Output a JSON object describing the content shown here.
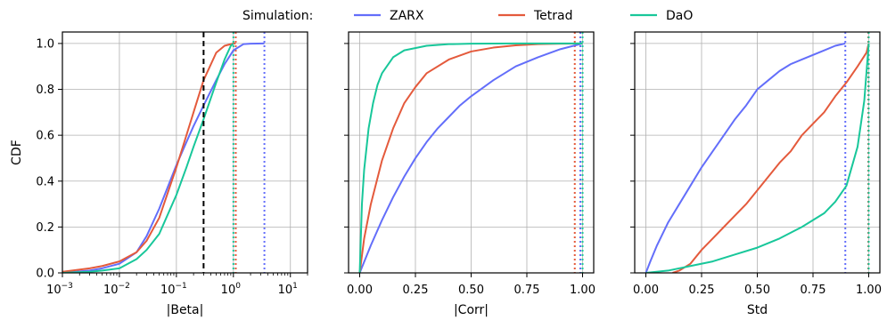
{
  "legend": {
    "title": "Simulation:",
    "placement": "top-center",
    "entries": [
      {
        "name": "ZARX",
        "color": "#636efa"
      },
      {
        "name": "Tetrad",
        "color": "#e45a3c"
      },
      {
        "name": "DaO",
        "color": "#18c79a"
      }
    ]
  },
  "colors": {
    "ZARX": "#636efa",
    "Tetrad": "#e45a3c",
    "DaO": "#18c79a",
    "threshold": "#000000",
    "grid": "#b0b0b0"
  },
  "chart_data": [
    {
      "type": "line",
      "panel": "beta",
      "xlabel": "|Beta|",
      "ylabel": "CDF",
      "xscale": "log",
      "xlim": [
        0.001,
        20
      ],
      "ylim": [
        0,
        1.05
      ],
      "grid": true,
      "xticks": [
        {
          "value": 0.001,
          "base": "10",
          "exp": "−3"
        },
        {
          "value": 0.01,
          "base": "10",
          "exp": "−2"
        },
        {
          "value": 0.1,
          "base": "10",
          "exp": "−1"
        },
        {
          "value": 1,
          "base": "10",
          "exp": "0"
        },
        {
          "value": 10,
          "base": "10",
          "exp": "1"
        }
      ],
      "yticks": [
        "0.0",
        "0.2",
        "0.4",
        "0.6",
        "0.8",
        "1.0"
      ],
      "threshold_line": 0.3,
      "vlines": [
        {
          "series": "Tetrad",
          "x": 1.1
        },
        {
          "series": "DaO",
          "x": 1.0
        },
        {
          "series": "ZARX",
          "x": 3.5
        }
      ],
      "series": [
        {
          "name": "ZARX",
          "x": [
            0.001,
            0.003,
            0.005,
            0.01,
            0.02,
            0.03,
            0.05,
            0.1,
            0.15,
            0.2,
            0.3,
            0.5,
            0.7,
            1.0,
            1.5,
            2.0,
            3.5
          ],
          "y": [
            0.0,
            0.01,
            0.02,
            0.04,
            0.09,
            0.16,
            0.28,
            0.47,
            0.57,
            0.64,
            0.73,
            0.84,
            0.91,
            0.97,
            0.997,
            0.999,
            1.0
          ]
        },
        {
          "name": "Tetrad",
          "x": [
            0.001,
            0.003,
            0.005,
            0.01,
            0.02,
            0.03,
            0.05,
            0.1,
            0.15,
            0.2,
            0.3,
            0.5,
            0.7,
            1.0,
            1.1
          ],
          "y": [
            0.005,
            0.02,
            0.03,
            0.05,
            0.09,
            0.14,
            0.24,
            0.46,
            0.6,
            0.7,
            0.84,
            0.96,
            0.99,
            1.0,
            1.0
          ]
        },
        {
          "name": "DaO",
          "x": [
            0.001,
            0.003,
            0.005,
            0.01,
            0.02,
            0.03,
            0.05,
            0.1,
            0.15,
            0.2,
            0.3,
            0.5,
            0.7,
            0.9,
            1.0
          ],
          "y": [
            0.0,
            0.005,
            0.01,
            0.02,
            0.06,
            0.1,
            0.17,
            0.34,
            0.46,
            0.55,
            0.67,
            0.83,
            0.93,
            0.99,
            1.0
          ]
        }
      ]
    },
    {
      "type": "line",
      "panel": "corr",
      "xlabel": "|Corr|",
      "ylabel": "",
      "xscale": "linear",
      "xlim": [
        -0.05,
        1.05
      ],
      "ylim": [
        0,
        1.05
      ],
      "grid": true,
      "xticks": [
        "0.00",
        "0.25",
        "0.50",
        "0.75",
        "1.00"
      ],
      "vlines": [
        {
          "series": "Tetrad",
          "x": 0.965
        },
        {
          "series": "ZARX",
          "x": 0.99
        },
        {
          "series": "DaO",
          "x": 1.0
        }
      ],
      "series": [
        {
          "name": "ZARX",
          "x": [
            0,
            0.05,
            0.1,
            0.15,
            0.2,
            0.25,
            0.3,
            0.35,
            0.4,
            0.45,
            0.5,
            0.6,
            0.7,
            0.8,
            0.9,
            1.0
          ],
          "y": [
            0.0,
            0.12,
            0.23,
            0.33,
            0.42,
            0.5,
            0.57,
            0.63,
            0.68,
            0.73,
            0.77,
            0.84,
            0.9,
            0.94,
            0.975,
            1.0
          ]
        },
        {
          "name": "Tetrad",
          "x": [
            0,
            0.02,
            0.05,
            0.1,
            0.15,
            0.2,
            0.25,
            0.3,
            0.4,
            0.5,
            0.6,
            0.7,
            0.8,
            0.9,
            1.0
          ],
          "y": [
            0.0,
            0.15,
            0.3,
            0.49,
            0.63,
            0.74,
            0.81,
            0.87,
            0.93,
            0.965,
            0.982,
            0.992,
            0.997,
            0.999,
            1.0
          ]
        },
        {
          "name": "DaO",
          "x": [
            0,
            0.01,
            0.02,
            0.04,
            0.06,
            0.08,
            0.1,
            0.15,
            0.2,
            0.3,
            0.4,
            0.5,
            0.7,
            1.0
          ],
          "y": [
            0.0,
            0.3,
            0.45,
            0.63,
            0.74,
            0.82,
            0.87,
            0.94,
            0.97,
            0.99,
            0.997,
            0.999,
            1.0,
            1.0
          ]
        }
      ]
    },
    {
      "type": "line",
      "panel": "std",
      "xlabel": "Std",
      "ylabel": "",
      "xscale": "linear",
      "xlim": [
        -0.05,
        1.05
      ],
      "ylim": [
        0,
        1.05
      ],
      "grid": true,
      "xticks": [
        "0.00",
        "0.25",
        "0.50",
        "0.75",
        "1.00"
      ],
      "vlines": [
        {
          "series": "ZARX",
          "x": 0.895
        },
        {
          "series": "Tetrad",
          "x": 0.998
        },
        {
          "series": "DaO",
          "x": 1.0
        }
      ],
      "series": [
        {
          "name": "ZARX",
          "x": [
            0.0,
            0.02,
            0.05,
            0.1,
            0.15,
            0.2,
            0.25,
            0.3,
            0.35,
            0.4,
            0.45,
            0.5,
            0.55,
            0.6,
            0.65,
            0.7,
            0.75,
            0.8,
            0.85,
            0.895
          ],
          "y": [
            0.0,
            0.05,
            0.12,
            0.22,
            0.3,
            0.38,
            0.46,
            0.53,
            0.6,
            0.67,
            0.73,
            0.8,
            0.84,
            0.88,
            0.91,
            0.93,
            0.95,
            0.97,
            0.99,
            1.0
          ]
        },
        {
          "name": "Tetrad",
          "x": [
            0.12,
            0.15,
            0.2,
            0.25,
            0.3,
            0.35,
            0.4,
            0.45,
            0.5,
            0.55,
            0.6,
            0.65,
            0.7,
            0.75,
            0.8,
            0.85,
            0.9,
            0.95,
            0.99,
            1.0
          ],
          "y": [
            0.0,
            0.01,
            0.04,
            0.1,
            0.15,
            0.2,
            0.25,
            0.3,
            0.36,
            0.42,
            0.48,
            0.53,
            0.6,
            0.65,
            0.7,
            0.77,
            0.83,
            0.9,
            0.96,
            1.0
          ]
        },
        {
          "name": "DaO",
          "x": [
            0.0,
            0.1,
            0.2,
            0.3,
            0.4,
            0.5,
            0.6,
            0.7,
            0.8,
            0.85,
            0.9,
            0.95,
            0.98,
            1.0
          ],
          "y": [
            0.0,
            0.01,
            0.03,
            0.05,
            0.08,
            0.11,
            0.15,
            0.2,
            0.26,
            0.31,
            0.38,
            0.55,
            0.75,
            1.0
          ]
        }
      ]
    }
  ]
}
